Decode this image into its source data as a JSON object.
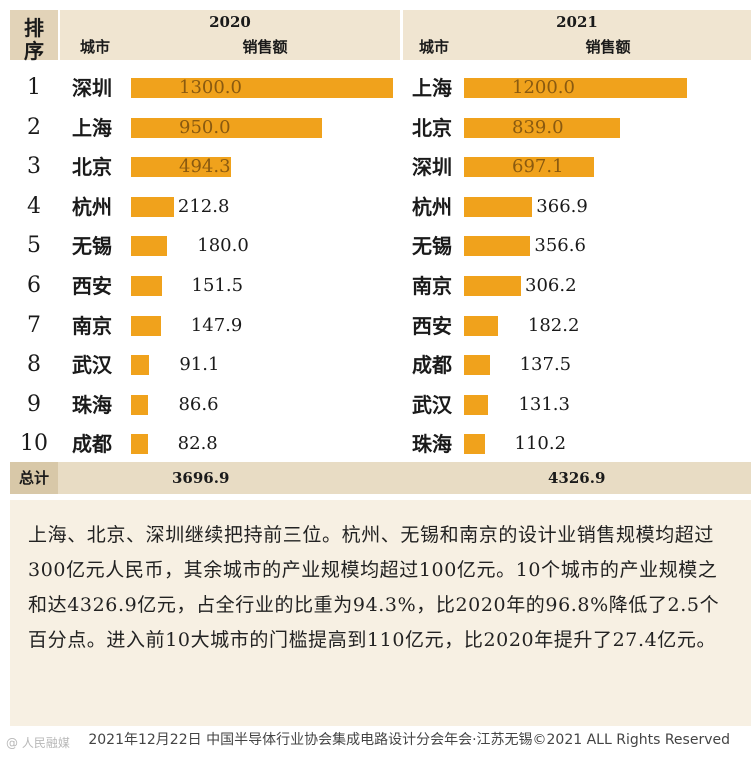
{
  "header": {
    "rank_label_1": "排",
    "rank_label_2": "序",
    "year_2020": "2020",
    "year_2021": "2021",
    "city_col": "城市",
    "sales_col": "销售额"
  },
  "chart_data": {
    "type": "bar",
    "orientation": "horizontal",
    "unit": "",
    "xlim": [
      0,
      1300
    ],
    "ranks": [
      "1",
      "2",
      "3",
      "4",
      "5",
      "6",
      "7",
      "8",
      "9",
      "10"
    ],
    "panels": [
      {
        "name": "2020",
        "categories": [
          "深圳",
          "上海",
          "北京",
          "杭州",
          "无锡",
          "西安",
          "南京",
          "武汉",
          "珠海",
          "成都"
        ],
        "values": [
          1300.0,
          950.0,
          494.3,
          212.8,
          180.0,
          151.5,
          147.9,
          91.1,
          86.6,
          82.8
        ],
        "labels": [
          "1300.0",
          "950.0",
          "494.3",
          "212.8",
          "180.0",
          "151.5",
          "147.9",
          "91.1",
          "86.6",
          "82.8"
        ],
        "total": "3696.9"
      },
      {
        "name": "2021",
        "categories": [
          "上海",
          "北京",
          "深圳",
          "杭州",
          "无锡",
          "南京",
          "西安",
          "成都",
          "武汉",
          "珠海"
        ],
        "values": [
          1200.0,
          839.0,
          697.1,
          366.9,
          356.6,
          306.2,
          182.2,
          137.5,
          131.3,
          110.2
        ],
        "labels": [
          "1200.0",
          "839.0",
          "697.1",
          "366.9",
          "356.6",
          "306.2",
          "182.2",
          "137.5",
          "131.3",
          "110.2"
        ],
        "total": "4326.9"
      }
    ],
    "bar_color": "#f0a21c"
  },
  "total_label": "总计",
  "note_text": "上海、北京、深圳继续把持前三位。杭州、无锡和南京的设计业销售规模均超过300亿元人民币，其余城市的产业规模均超过100亿元。10个城市的产业规模之和达4326.9亿元，占全行业的比重为94.3%，比2020年的96.8%降低了2.5个百分点。进入前10大城市的门槛提高到110亿元，比2020年提升了27.4亿元。",
  "footer": "2021年12月22日 中国半导体行业协会集成电路设计分会年会·江苏无锡©2021 ALL Rights Reserved",
  "watermark": "@ 人民融媒"
}
